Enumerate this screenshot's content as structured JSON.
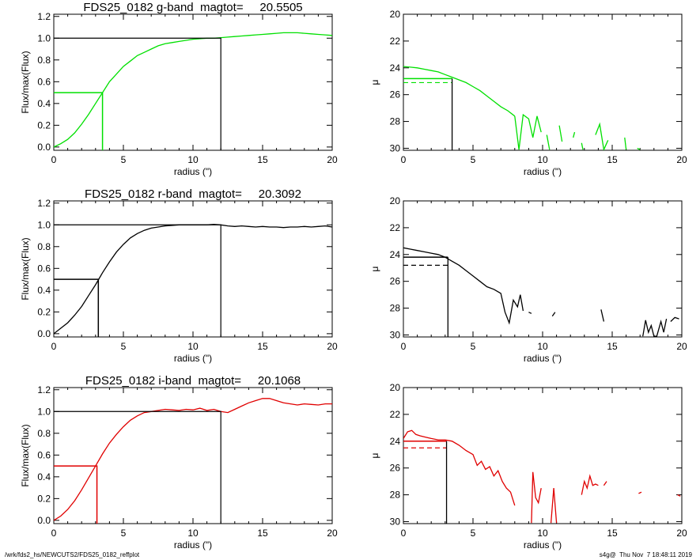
{
  "footer": {
    "path": "/wrk/fds2_hs/NEWCUTS2/FDS25_0182_reffplot",
    "stamp": "s4g@  Thu Nov  7 18:48:11 2019"
  },
  "chart_data": [
    {
      "type": "line",
      "title": "FDS25_0182 g-band  magtot=     20.5505",
      "xlabel": "radius (\")",
      "ylabel": "Flux/max(Flux)",
      "xlim": [
        0,
        20
      ],
      "ylim": [
        -0.03,
        1.22
      ],
      "xticks": [
        "0",
        "5",
        "10",
        "15",
        "20"
      ],
      "yticks": [
        "0.0",
        "0.2",
        "0.4",
        "0.6",
        "0.8",
        "1.0",
        "1.2"
      ],
      "color": "#00e000",
      "x": [
        0,
        0.5,
        1,
        1.5,
        2,
        2.5,
        3,
        3.5,
        4,
        4.5,
        5,
        5.5,
        6,
        6.5,
        7,
        7.5,
        8,
        8.5,
        9,
        9.5,
        10,
        10.5,
        11,
        11.5,
        12,
        12.5,
        13,
        13.5,
        14,
        14.5,
        15,
        15.5,
        16,
        16.5,
        17,
        17.5,
        18,
        18.5,
        19,
        19.5,
        20
      ],
      "y": [
        0.0,
        0.03,
        0.07,
        0.13,
        0.21,
        0.3,
        0.4,
        0.5,
        0.6,
        0.67,
        0.74,
        0.79,
        0.84,
        0.87,
        0.9,
        0.93,
        0.95,
        0.96,
        0.97,
        0.98,
        0.99,
        0.995,
        1.0,
        1.0,
        1.005,
        1.01,
        1.015,
        1.02,
        1.025,
        1.03,
        1.035,
        1.04,
        1.045,
        1.05,
        1.05,
        1.05,
        1.045,
        1.04,
        1.035,
        1.03,
        1.025
      ],
      "half_radius": 3.5,
      "total_radius": 12
    },
    {
      "type": "line",
      "xlabel": "radius (\")",
      "ylabel": "μ",
      "xlim": [
        0,
        20
      ],
      "ylim": [
        30.15,
        20
      ],
      "xticks": [
        "0",
        "5",
        "10",
        "15",
        "20"
      ],
      "yticks": [
        "20",
        "22",
        "24",
        "26",
        "28",
        "30"
      ],
      "color": "#00e000",
      "segments": [
        {
          "x": [
            0,
            0.5,
            1,
            1.5,
            2,
            2.5,
            3,
            3.5,
            4,
            4.5,
            5,
            5.5,
            6,
            6.5,
            7,
            7.5,
            8
          ],
          "y": [
            23.9,
            23.95,
            24.0,
            24.1,
            24.2,
            24.3,
            24.5,
            24.7,
            24.9,
            25.1,
            25.4,
            25.7,
            26.1,
            26.5,
            26.9,
            27.2,
            27.6
          ]
        },
        {
          "x": [
            8,
            8.3,
            8.6,
            9.0,
            9.3,
            9.6,
            9.9
          ],
          "y": [
            27.6,
            30.1,
            27.5,
            27.8,
            29.2,
            27.6,
            28.8
          ]
        },
        {
          "x": [
            10.3,
            10.5
          ],
          "y": [
            29.0,
            30.1
          ]
        },
        {
          "x": [
            11.2,
            11.4
          ],
          "y": [
            28.3,
            29.5
          ]
        },
        {
          "x": [
            12.2,
            12.3
          ],
          "y": [
            29.2,
            28.8
          ]
        },
        {
          "x": [
            12.8,
            12.9
          ],
          "y": [
            29.6,
            30.1
          ]
        },
        {
          "x": [
            13.8,
            14.1,
            14.4,
            14.7
          ],
          "y": [
            29.0,
            28.2,
            30.1,
            29.4
          ]
        },
        {
          "x": [
            15.9,
            16.0
          ],
          "y": [
            29.2,
            30.1
          ]
        },
        {
          "x": [
            16.8,
            17.0
          ],
          "y": [
            30.0,
            30.1
          ]
        }
      ],
      "half_radius": 3.5,
      "mu_half": 24.8,
      "mu_mean": 25.1
    },
    {
      "type": "line",
      "title": "FDS25_0182 r-band  magtot=     20.3092",
      "xlabel": "radius (\")",
      "ylabel": "Flux/max(Flux)",
      "xlim": [
        0,
        20
      ],
      "ylim": [
        -0.03,
        1.22
      ],
      "xticks": [
        "0",
        "5",
        "10",
        "15",
        "20"
      ],
      "yticks": [
        "0.0",
        "0.2",
        "0.4",
        "0.6",
        "0.8",
        "1.0",
        "1.2"
      ],
      "color": "#000000",
      "x": [
        0,
        0.5,
        1,
        1.5,
        2,
        2.5,
        3,
        3.5,
        4,
        4.5,
        5,
        5.5,
        6,
        6.5,
        7,
        7.5,
        8,
        8.5,
        9,
        9.5,
        10,
        10.5,
        11,
        11.5,
        12,
        12.5,
        13,
        13.5,
        14,
        14.5,
        15,
        15.5,
        16,
        16.5,
        17,
        17.5,
        18,
        18.5,
        19,
        19.5,
        20
      ],
      "y": [
        0.0,
        0.05,
        0.1,
        0.17,
        0.25,
        0.35,
        0.45,
        0.56,
        0.66,
        0.75,
        0.82,
        0.88,
        0.92,
        0.95,
        0.97,
        0.98,
        0.99,
        0.995,
        1.0,
        1.0,
        1.0,
        1.0,
        1.0,
        1.005,
        1.0,
        0.99,
        0.985,
        0.99,
        0.985,
        0.98,
        0.985,
        0.98,
        0.98,
        0.975,
        0.98,
        0.98,
        0.985,
        0.98,
        0.985,
        0.99,
        0.98
      ],
      "half_radius": 3.2,
      "total_radius": 12
    },
    {
      "type": "line",
      "xlabel": "radius (\")",
      "ylabel": "μ",
      "xlim": [
        0,
        20
      ],
      "ylim": [
        30.15,
        20
      ],
      "xticks": [
        "0",
        "5",
        "10",
        "15",
        "20"
      ],
      "yticks": [
        "20",
        "22",
        "24",
        "26",
        "28",
        "30"
      ],
      "color": "#000000",
      "segments": [
        {
          "x": [
            0,
            0.5,
            1,
            1.5,
            2,
            2.5,
            3,
            3.5,
            4,
            4.5,
            5,
            5.5,
            6,
            6.5,
            7,
            7.3,
            7.6,
            7.9,
            8.2,
            8.4
          ],
          "y": [
            23.5,
            23.6,
            23.7,
            23.8,
            23.9,
            24.0,
            24.2,
            24.5,
            24.8,
            25.2,
            25.6,
            26.0,
            26.4,
            26.6,
            26.9,
            28.3,
            29.1,
            27.4,
            27.9,
            27.0
          ]
        },
        {
          "x": [
            8.4,
            8.6
          ],
          "y": [
            27.0,
            28.2
          ]
        },
        {
          "x": [
            9.0,
            9.2
          ],
          "y": [
            28.3,
            28.4
          ]
        },
        {
          "x": [
            10.7,
            10.9
          ],
          "y": [
            28.6,
            28.3
          ]
        },
        {
          "x": [
            14.2,
            14.4
          ],
          "y": [
            28.1,
            29.0
          ]
        },
        {
          "x": [
            17.2,
            17.4,
            17.6,
            17.8,
            18.0,
            18.2,
            18.5,
            18.7,
            18.9
          ],
          "y": [
            30.1,
            28.9,
            29.8,
            29.3,
            30.1,
            30.1,
            29.0,
            29.8,
            28.8
          ]
        },
        {
          "x": [
            19.2,
            19.5,
            19.8
          ],
          "y": [
            29.0,
            28.7,
            28.8
          ]
        }
      ],
      "half_radius": 3.2,
      "mu_half": 24.2,
      "mu_mean": 24.8
    },
    {
      "type": "line",
      "title": "FDS25_0182 i-band  magtot=     20.1068",
      "xlabel": "radius (\")",
      "ylabel": "Flux/max(Flux)",
      "xlim": [
        0,
        20
      ],
      "ylim": [
        -0.03,
        1.22
      ],
      "xticks": [
        "0",
        "5",
        "10",
        "15",
        "20"
      ],
      "yticks": [
        "0.0",
        "0.2",
        "0.4",
        "0.6",
        "0.8",
        "1.0",
        "1.2"
      ],
      "color": "#e00000",
      "x": [
        0,
        0.5,
        1,
        1.5,
        2,
        2.5,
        3,
        3.5,
        4,
        4.5,
        5,
        5.5,
        6,
        6.5,
        7,
        7.5,
        8,
        8.5,
        9,
        9.5,
        10,
        10.5,
        11,
        11.5,
        12,
        12.5,
        13,
        13.5,
        14,
        14.5,
        15,
        15.5,
        16,
        16.5,
        17,
        17.5,
        18,
        18.5,
        19,
        19.5,
        20
      ],
      "y": [
        0.0,
        0.04,
        0.1,
        0.18,
        0.28,
        0.39,
        0.5,
        0.61,
        0.71,
        0.79,
        0.86,
        0.92,
        0.96,
        0.99,
        1.0,
        1.01,
        1.02,
        1.015,
        1.01,
        1.02,
        1.015,
        1.03,
        1.01,
        1.02,
        1.0,
        0.99,
        1.02,
        1.05,
        1.08,
        1.1,
        1.12,
        1.12,
        1.1,
        1.08,
        1.07,
        1.06,
        1.07,
        1.065,
        1.06,
        1.07,
        1.07
      ],
      "half_radius": 3.1,
      "total_radius": 12
    },
    {
      "type": "line",
      "xlabel": "radius (\")",
      "ylabel": "μ",
      "xlim": [
        0,
        20
      ],
      "ylim": [
        30.15,
        20
      ],
      "xticks": [
        "0",
        "5",
        "10",
        "15",
        "20"
      ],
      "yticks": [
        "20",
        "22",
        "24",
        "26",
        "28",
        "30"
      ],
      "color": "#e00000",
      "segments": [
        {
          "x": [
            0,
            0.3,
            0.6,
            0.9,
            1.2,
            1.6,
            2,
            2.5,
            3,
            3.5,
            4,
            4.5,
            5,
            5.3,
            5.6,
            5.9,
            6.2,
            6.5,
            6.8,
            7.1,
            7.4,
            7.7,
            8.0
          ],
          "y": [
            23.8,
            23.3,
            23.2,
            23.5,
            23.6,
            23.7,
            23.8,
            23.9,
            23.9,
            24.0,
            24.3,
            24.7,
            25.0,
            25.8,
            25.5,
            26.1,
            25.9,
            26.6,
            26.2,
            27.0,
            27.5,
            27.8,
            28.8
          ]
        },
        {
          "x": [
            9.2,
            9.3,
            9.5,
            9.7,
            9.9
          ],
          "y": [
            30.1,
            26.3,
            28.2,
            28.6,
            27.5
          ]
        },
        {
          "x": [
            10.6,
            10.8,
            11.0
          ],
          "y": [
            30.1,
            27.5,
            30.1
          ]
        },
        {
          "x": [
            12.8,
            13.0,
            13.2,
            13.4,
            13.6,
            13.8,
            14.0
          ],
          "y": [
            28.0,
            27.0,
            27.5,
            26.6,
            27.3,
            27.2,
            27.3
          ]
        },
        {
          "x": [
            14.4,
            14.6
          ],
          "y": [
            27.3,
            27.0
          ]
        },
        {
          "x": [
            16.9,
            17.1
          ],
          "y": [
            27.9,
            27.8
          ]
        },
        {
          "x": [
            19.7,
            19.9
          ],
          "y": [
            28.0,
            28.1
          ]
        }
      ],
      "half_radius": 3.1,
      "mu_half": 24.0,
      "mu_mean": 24.5
    }
  ]
}
